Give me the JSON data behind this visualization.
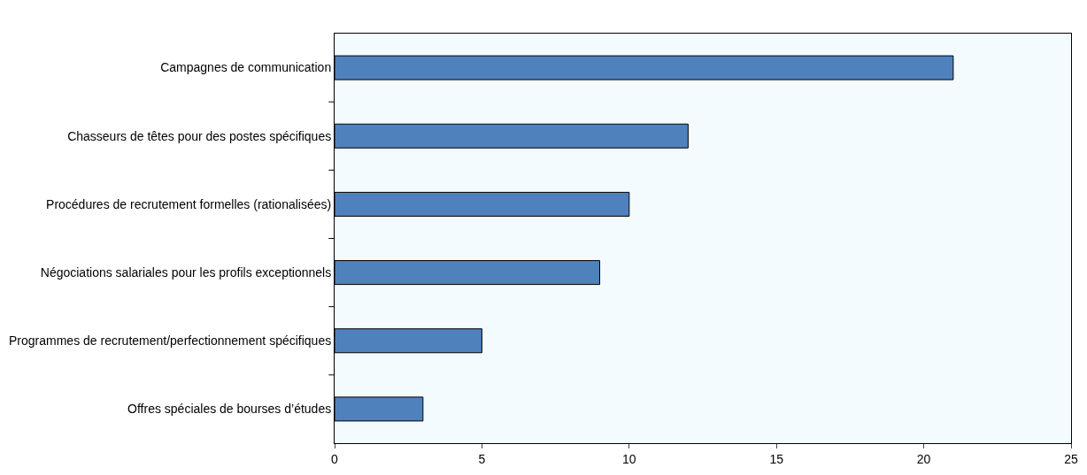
{
  "chart_data": {
    "type": "bar",
    "orientation": "horizontal",
    "categories": [
      "Campagnes de communication",
      "Chasseurs de têtes pour des postes spécifiques",
      "Procédures de recrutement formelles (rationalisées)",
      "Négociations salariales pour les profils exceptionnels",
      "Programmes de recrutement/perfectionnement spécifiques",
      "Offres spéciales de bourses d’études"
    ],
    "values": [
      21,
      12,
      10,
      9,
      5,
      3
    ],
    "color": "#4f81bd",
    "xlim": [
      0,
      25
    ],
    "xticks": [
      0,
      5,
      10,
      15,
      20,
      25
    ]
  }
}
